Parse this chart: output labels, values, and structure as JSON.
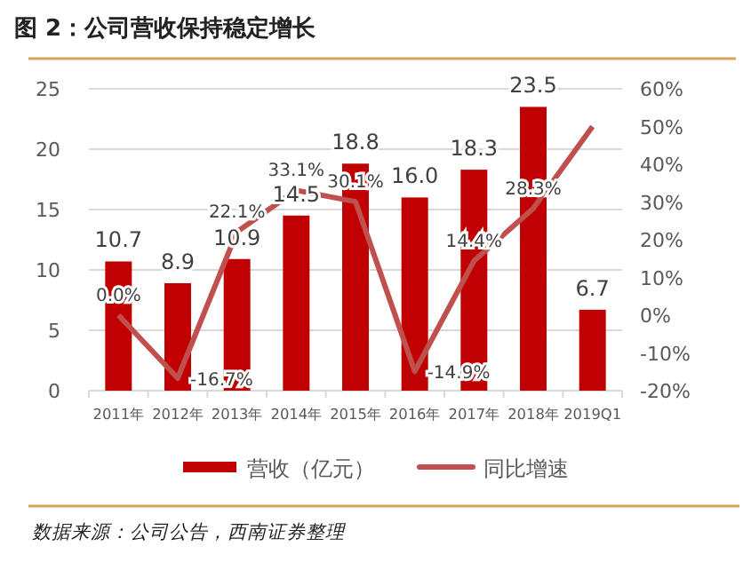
{
  "chart_data": {
    "type": "bar",
    "title": "图 2：公司营收保持稳定增长",
    "annotations": [
      "数据来源：公司公告，西南证券整理"
    ],
    "categories": [
      "2011年",
      "2012年",
      "2013年",
      "2014年",
      "2015年",
      "2016年",
      "2017年",
      "2018年",
      "2019Q1"
    ],
    "series": [
      {
        "name": "营收（亿元）",
        "color": "#c00000",
        "values": [
          10.7,
          8.9,
          10.9,
          14.5,
          18.8,
          16.0,
          18.3,
          23.5,
          6.7
        ],
        "value_labels": [
          "10.7",
          "8.9",
          "10.9",
          "14.5",
          "18.8",
          "16.0",
          "18.3",
          "23.5",
          "6.7"
        ]
      },
      {
        "name": "同比增速",
        "type": "line",
        "axis": "y2",
        "color": "#c0504d",
        "values": [
          0.0,
          -16.7,
          22.1,
          33.1,
          30.1,
          -14.9,
          14.4,
          28.3,
          50
        ],
        "value_labels": [
          "0.0%",
          "-16.7%",
          "22.1%",
          "33.1%",
          "30.1%",
          "-14.9%",
          "14.4%",
          "28.3%",
          null
        ]
      }
    ],
    "ylim": [
      0,
      25
    ],
    "yticks": [
      0,
      5,
      10,
      15,
      20,
      25
    ],
    "y2lim": [
      -20,
      60
    ],
    "y2ticks": [
      {
        "value": -20,
        "label": "-20%"
      },
      {
        "value": -10,
        "label": "-10%"
      },
      {
        "value": 0,
        "label": "0%"
      },
      {
        "value": 10,
        "label": "10%"
      },
      {
        "value": 20,
        "label": "20%"
      },
      {
        "value": 30,
        "label": "30%"
      },
      {
        "value": 40,
        "label": "40%"
      },
      {
        "value": 50,
        "label": "50%"
      },
      {
        "value": 60,
        "label": "60%"
      }
    ],
    "grid": "y",
    "legend": "bottom"
  }
}
